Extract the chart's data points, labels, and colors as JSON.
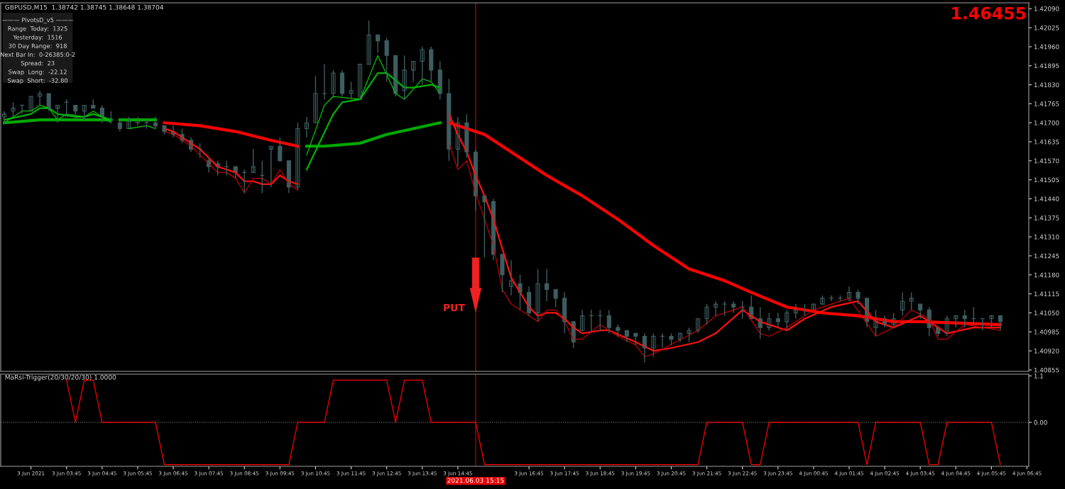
{
  "chart_data": [
    {
      "type": "candlestick",
      "title": "GBPUSD,M15  1.38742 1.38745 1.38648 1.38704",
      "color": "#3e5e60",
      "x": [
        "2021-06-03T02:00",
        "2021-06-03T02:15",
        "2021-06-03T02:30",
        "2021-06-03T02:45",
        "2021-06-03T03:00",
        "2021-06-03T03:15",
        "2021-06-03T03:30",
        "2021-06-03T03:45",
        "2021-06-03T04:00",
        "2021-06-03T04:15",
        "2021-06-03T04:30",
        "2021-06-03T04:45",
        "2021-06-03T05:00",
        "2021-06-03T05:15",
        "2021-06-03T05:30",
        "2021-06-03T05:45",
        "2021-06-03T06:00",
        "2021-06-03T06:15",
        "2021-06-03T06:30",
        "2021-06-03T06:45",
        "2021-06-03T07:00",
        "2021-06-03T07:15",
        "2021-06-03T07:30",
        "2021-06-03T07:45",
        "2021-06-03T08:00",
        "2021-06-03T08:15",
        "2021-06-03T08:30",
        "2021-06-03T08:45",
        "2021-06-03T09:00",
        "2021-06-03T09:15",
        "2021-06-03T09:30",
        "2021-06-03T09:45",
        "2021-06-03T10:00",
        "2021-06-03T10:15",
        "2021-06-03T10:30",
        "2021-06-03T10:45",
        "2021-06-03T11:00",
        "2021-06-03T11:15",
        "2021-06-03T11:30",
        "2021-06-03T11:45",
        "2021-06-03T12:00",
        "2021-06-03T12:15",
        "2021-06-03T12:30",
        "2021-06-03T12:45",
        "2021-06-03T13:00",
        "2021-06-03T13:15",
        "2021-06-03T13:30",
        "2021-06-03T13:45",
        "2021-06-03T14:00",
        "2021-06-03T14:15",
        "2021-06-03T14:30",
        "2021-06-03T14:45",
        "2021-06-03T15:00",
        "2021-06-03T15:15",
        "2021-06-03T15:30",
        "2021-06-03T15:45",
        "2021-06-03T16:00",
        "2021-06-03T16:15",
        "2021-06-03T16:30",
        "2021-06-03T16:45",
        "2021-06-03T17:00",
        "2021-06-03T17:15",
        "2021-06-03T17:30",
        "2021-06-03T17:45",
        "2021-06-03T18:00",
        "2021-06-03T18:15",
        "2021-06-03T18:30",
        "2021-06-03T18:45",
        "2021-06-03T19:00",
        "2021-06-03T19:15",
        "2021-06-03T19:30",
        "2021-06-03T19:45",
        "2021-06-03T20:00",
        "2021-06-03T20:15",
        "2021-06-03T20:30",
        "2021-06-03T20:45",
        "2021-06-03T21:00",
        "2021-06-03T21:15",
        "2021-06-03T21:30",
        "2021-06-03T21:45",
        "2021-06-03T22:00",
        "2021-06-03T22:15",
        "2021-06-03T22:30",
        "2021-06-03T22:45",
        "2021-06-03T23:00",
        "2021-06-03T23:15",
        "2021-06-03T23:30",
        "2021-06-03T23:45",
        "2021-06-04T00:00",
        "2021-06-04T00:15",
        "2021-06-04T00:30",
        "2021-06-04T00:45",
        "2021-06-04T01:00",
        "2021-06-04T01:15",
        "2021-06-04T01:30",
        "2021-06-04T01:45",
        "2021-06-04T02:00",
        "2021-06-04T02:15",
        "2021-06-04T02:30",
        "2021-06-04T02:45",
        "2021-06-04T03:00",
        "2021-06-04T03:15",
        "2021-06-04T03:30",
        "2021-06-04T03:45",
        "2021-06-04T04:00",
        "2021-06-04T04:15",
        "2021-06-04T04:30",
        "2021-06-04T04:45",
        "2021-06-04T05:00",
        "2021-06-04T05:15",
        "2021-06-04T05:30",
        "2021-06-04T05:45",
        "2021-06-04T06:00"
      ],
      "ohlc": [
        [
          1.4172,
          1.4174,
          1.417,
          1.4173
        ],
        [
          1.4174,
          1.4177,
          1.4172,
          1.4175
        ],
        [
          1.4176,
          1.4176,
          1.4173,
          1.4176
        ],
        [
          1.4174,
          1.4179,
          1.4174,
          1.4179
        ],
        [
          1.4179,
          1.4181,
          1.4176,
          1.418
        ],
        [
          1.418,
          1.418,
          1.4174,
          1.4175
        ],
        [
          1.4175,
          1.4176,
          1.417,
          1.4176
        ],
        [
          1.4177,
          1.4178,
          1.4172,
          1.4177
        ],
        [
          1.4176,
          1.4176,
          1.4171,
          1.4174
        ],
        [
          1.4174,
          1.4176,
          1.4171,
          1.4176
        ],
        [
          1.4176,
          1.4178,
          1.4175,
          1.4175
        ],
        [
          1.4175,
          1.4176,
          1.417,
          1.4172
        ],
        [
          1.4171,
          1.4174,
          1.417,
          1.4171
        ],
        [
          1.417,
          1.4171,
          1.4167,
          1.4168
        ],
        [
          1.4168,
          1.4172,
          1.4168,
          1.4171
        ],
        [
          1.417,
          1.4172,
          1.4169,
          1.4171
        ],
        [
          1.417,
          1.4171,
          1.4168,
          1.417
        ],
        [
          1.417,
          1.4172,
          1.4168,
          1.4169
        ],
        [
          1.4169,
          1.4169,
          1.4166,
          1.4167
        ],
        [
          1.4167,
          1.4169,
          1.4165,
          1.4166
        ],
        [
          1.4166,
          1.4168,
          1.4163,
          1.4164
        ],
        [
          1.4164,
          1.4165,
          1.416,
          1.4161
        ],
        [
          1.4161,
          1.4163,
          1.4158,
          1.4161
        ],
        [
          1.4157,
          1.4158,
          1.4153,
          1.4155
        ],
        [
          1.4156,
          1.4157,
          1.4152,
          1.4155
        ],
        [
          1.4155,
          1.4157,
          1.4152,
          1.4155
        ],
        [
          1.4155,
          1.4155,
          1.4151,
          1.4153
        ],
        [
          1.4153,
          1.4154,
          1.4146,
          1.4153
        ],
        [
          1.4153,
          1.4161,
          1.4153,
          1.4155
        ],
        [
          1.4152,
          1.4157,
          1.4146,
          1.4152
        ],
        [
          1.4161,
          1.4162,
          1.4148,
          1.4162
        ],
        [
          1.4162,
          1.4165,
          1.4157,
          1.4157
        ],
        [
          1.4157,
          1.4157,
          1.4146,
          1.4148
        ],
        [
          1.4148,
          1.417,
          1.4147,
          1.4168
        ],
        [
          1.4168,
          1.4172,
          1.4165,
          1.417
        ],
        [
          1.417,
          1.4186,
          1.417,
          1.418
        ],
        [
          1.418,
          1.419,
          1.4178,
          1.418
        ],
        [
          1.418,
          1.4188,
          1.4179,
          1.4187
        ],
        [
          1.4187,
          1.4188,
          1.4179,
          1.418
        ],
        [
          1.418,
          1.4184,
          1.4178,
          1.4181
        ],
        [
          1.4178,
          1.419,
          1.4178,
          1.419
        ],
        [
          1.419,
          1.4205,
          1.419,
          1.42
        ],
        [
          1.42,
          1.42,
          1.4194,
          1.4198
        ],
        [
          1.4198,
          1.4199,
          1.4184,
          1.4193
        ],
        [
          1.4193,
          1.4193,
          1.4179,
          1.418
        ],
        [
          1.4181,
          1.4193,
          1.4178,
          1.4188
        ],
        [
          1.4188,
          1.4191,
          1.4184,
          1.4191
        ],
        [
          1.4191,
          1.4196,
          1.4183,
          1.4195
        ],
        [
          1.4195,
          1.4196,
          1.4184,
          1.4188
        ],
        [
          1.4188,
          1.4191,
          1.4178,
          1.418
        ],
        [
          1.418,
          1.4185,
          1.4157,
          1.4161
        ],
        [
          1.4161,
          1.4172,
          1.4155,
          1.417
        ],
        [
          1.417,
          1.4173,
          1.4158,
          1.416
        ],
        [
          1.416,
          1.4161,
          1.414,
          1.4145
        ],
        [
          1.4145,
          1.4145,
          1.4124,
          1.4143
        ],
        [
          1.4143,
          1.4144,
          1.4123,
          1.4125
        ],
        [
          1.4125,
          1.4125,
          1.4112,
          1.4118
        ],
        [
          1.4114,
          1.4123,
          1.4111,
          1.4116
        ],
        [
          1.4115,
          1.4118,
          1.4106,
          1.4112
        ],
        [
          1.4112,
          1.4114,
          1.4104,
          1.4105
        ],
        [
          1.4105,
          1.412,
          1.4102,
          1.4115
        ],
        [
          1.4115,
          1.412,
          1.4109,
          1.4113
        ],
        [
          1.4113,
          1.4113,
          1.4107,
          1.411
        ],
        [
          1.411,
          1.4112,
          1.4098,
          1.4102
        ],
        [
          1.4102,
          1.4102,
          1.4093,
          1.4095
        ],
        [
          1.4099,
          1.4106,
          1.4099,
          1.4104
        ],
        [
          1.4104,
          1.4106,
          1.4098,
          1.4104
        ],
        [
          1.4104,
          1.4106,
          1.4099,
          1.4104
        ],
        [
          1.4104,
          1.4106,
          1.4098,
          1.41
        ],
        [
          1.41,
          1.4101,
          1.4097,
          1.4099
        ],
        [
          1.4099,
          1.4099,
          1.4095,
          1.4097
        ],
        [
          1.4098,
          1.4098,
          1.4094,
          1.4097
        ],
        [
          1.4097,
          1.4098,
          1.4088,
          1.4093
        ],
        [
          1.4093,
          1.4098,
          1.409,
          1.4097
        ],
        [
          1.4097,
          1.4098,
          1.4093,
          1.4097
        ],
        [
          1.4097,
          1.4098,
          1.4094,
          1.4096
        ],
        [
          1.4096,
          1.4098,
          1.4095,
          1.4098
        ],
        [
          1.4098,
          1.41,
          1.4095,
          1.4099
        ],
        [
          1.4099,
          1.4103,
          1.4098,
          1.4103
        ],
        [
          1.4103,
          1.4108,
          1.4101,
          1.4107
        ],
        [
          1.4107,
          1.4109,
          1.4104,
          1.4108
        ],
        [
          1.4108,
          1.4109,
          1.4104,
          1.4108
        ],
        [
          1.4108,
          1.4109,
          1.4105,
          1.4107
        ],
        [
          1.4107,
          1.4109,
          1.4103,
          1.4107
        ],
        [
          1.4107,
          1.4111,
          1.4103,
          1.4103
        ],
        [
          1.4103,
          1.4107,
          1.4096,
          1.41
        ],
        [
          1.41,
          1.4105,
          1.4099,
          1.4103
        ],
        [
          1.4103,
          1.4105,
          1.41,
          1.4102
        ],
        [
          1.4102,
          1.4106,
          1.4099,
          1.4105
        ],
        [
          1.4105,
          1.4108,
          1.4103,
          1.4106
        ],
        [
          1.4106,
          1.4108,
          1.4104,
          1.4106
        ],
        [
          1.4106,
          1.4108,
          1.4106,
          1.4108
        ],
        [
          1.4108,
          1.4111,
          1.4108,
          1.411
        ],
        [
          1.411,
          1.4111,
          1.4109,
          1.411
        ],
        [
          1.411,
          1.4111,
          1.4109,
          1.411
        ],
        [
          1.411,
          1.4114,
          1.4109,
          1.4112
        ],
        [
          1.4112,
          1.4113,
          1.4108,
          1.411
        ],
        [
          1.411,
          1.411,
          1.41,
          1.4102
        ],
        [
          1.41,
          1.4106,
          1.4097,
          1.4103
        ],
        [
          1.4103,
          1.4104,
          1.41,
          1.4101
        ],
        [
          1.4101,
          1.4105,
          1.41,
          1.4103
        ],
        [
          1.4106,
          1.4112,
          1.4104,
          1.4109
        ],
        [
          1.4109,
          1.4112,
          1.4106,
          1.411
        ],
        [
          1.4108,
          1.4108,
          1.4103,
          1.4106
        ],
        [
          1.4106,
          1.4107,
          1.4097,
          1.41
        ],
        [
          1.41,
          1.41,
          1.4097,
          1.4098
        ],
        [
          1.4098,
          1.4104,
          1.4097,
          1.4103
        ],
        [
          1.4103,
          1.4104,
          1.41,
          1.4104
        ],
        [
          1.4104,
          1.4106,
          1.41,
          1.4103
        ],
        [
          1.4103,
          1.4107,
          1.4101,
          1.4103
        ],
        [
          1.4103,
          1.4103,
          1.4099,
          1.4103
        ],
        [
          1.4103,
          1.4104,
          1.41,
          1.4104
        ],
        [
          1.4104,
          1.4104,
          1.4099,
          1.4102
        ]
      ],
      "series": [
        {
          "type": "line",
          "color": "#00a800",
          "x": [
            "2021-06-03T02:00",
            "2021-06-03T03:00",
            "2021-06-03T03:45",
            "2021-06-03T05:00"
          ],
          "values": [
            1.417,
            1.4171,
            1.4171,
            1.4171
          ]
        },
        {
          "type": "line",
          "color": "#00a800",
          "x": [
            "2021-06-03T05:15",
            "2021-06-03T06:15"
          ],
          "values": [
            1.4171,
            1.4171
          ]
        },
        {
          "type": "line",
          "color": "#00a800",
          "x": [
            "2021-06-03T10:30",
            "2021-06-03T11:00",
            "2021-06-03T12:00",
            "2021-06-03T12:45",
            "2021-06-03T13:30",
            "2021-06-03T14:15"
          ],
          "values": [
            1.4162,
            1.4162,
            1.4163,
            1.4166,
            1.4168,
            1.417
          ]
        },
        {
          "type": "line",
          "color": "#ff0000",
          "x": [
            "2021-06-03T06:30",
            "2021-06-03T07:30",
            "2021-06-03T08:30",
            "2021-06-03T09:30",
            "2021-06-03T10:15"
          ],
          "values": [
            1.417,
            1.4169,
            1.4167,
            1.4164,
            1.4162
          ]
        },
        {
          "type": "line",
          "color": "#ff0000",
          "x": [
            "2021-06-03T14:30",
            "2021-06-03T15:30",
            "2021-06-03T16:00",
            "2021-06-03T17:15",
            "2021-06-03T18:15",
            "2021-06-03T19:15",
            "2021-06-03T20:15",
            "2021-06-03T21:15",
            "2021-06-03T22:15",
            "2021-06-03T23:00",
            "2021-06-04T00:00",
            "2021-06-04T01:00",
            "2021-06-04T02:00",
            "2021-06-04T03:00",
            "2021-06-04T03:45",
            "2021-06-04T06:00"
          ],
          "values": [
            1.417,
            1.4166,
            1.4162,
            1.4152,
            1.4145,
            1.4137,
            1.4128,
            1.412,
            1.4116,
            1.4112,
            1.4107,
            1.4105,
            1.4104,
            1.4102,
            1.4102,
            1.4101
          ]
        },
        {
          "type": "line",
          "color": "#00b400",
          "x": [
            "2021-06-03T02:00",
            "2021-06-03T02:45",
            "2021-06-03T03:00",
            "2021-06-03T03:15",
            "2021-06-03T03:30",
            "2021-06-03T04:00",
            "2021-06-03T04:15",
            "2021-06-03T04:30",
            "2021-06-03T05:00"
          ],
          "values": [
            1.4171,
            1.4173,
            1.4175,
            1.4175,
            1.4173,
            1.4172,
            1.4172,
            1.4173,
            1.4171
          ]
        },
        {
          "type": "line",
          "color": "#00b400",
          "x": [
            "2021-06-03T10:30",
            "2021-06-03T11:15",
            "2021-06-03T11:30",
            "2021-06-03T12:00",
            "2021-06-03T12:30",
            "2021-06-03T12:45",
            "2021-06-03T13:15",
            "2021-06-03T13:30",
            "2021-06-03T14:00",
            "2021-06-03T14:15"
          ],
          "values": [
            1.4154,
            1.4173,
            1.4177,
            1.4178,
            1.4187,
            1.4187,
            1.4182,
            1.4182,
            1.4183,
            1.4182
          ]
        },
        {
          "type": "line",
          "color": "#ff1010",
          "x": [
            "2021-06-03T06:30",
            "2021-06-03T06:45",
            "2021-06-03T07:00",
            "2021-06-03T07:15",
            "2021-06-03T07:30",
            "2021-06-03T07:45",
            "2021-06-03T08:00",
            "2021-06-03T08:15",
            "2021-06-03T08:30",
            "2021-06-03T08:45",
            "2021-06-03T09:00",
            "2021-06-03T09:15",
            "2021-06-03T09:30",
            "2021-06-03T09:45",
            "2021-06-03T10:00",
            "2021-06-03T10:15"
          ],
          "values": [
            1.4168,
            1.4167,
            1.4165,
            1.4163,
            1.4161,
            1.4158,
            1.4155,
            1.4154,
            1.4153,
            1.415,
            1.415,
            1.4149,
            1.4149,
            1.4152,
            1.415,
            1.4149
          ]
        },
        {
          "type": "line",
          "color": "#ff1010",
          "x": [
            "2021-06-03T14:30",
            "2021-06-03T14:45",
            "2021-06-03T15:00",
            "2021-06-03T15:15",
            "2021-06-03T15:30",
            "2021-06-03T15:45",
            "2021-06-03T16:00",
            "2021-06-03T16:15",
            "2021-06-03T16:30",
            "2021-06-03T16:45",
            "2021-06-03T17:00",
            "2021-06-03T17:15",
            "2021-06-03T17:30",
            "2021-06-03T17:45",
            "2021-06-03T18:00",
            "2021-06-03T18:15",
            "2021-06-03T18:45",
            "2021-06-03T19:00",
            "2021-06-03T19:45",
            "2021-06-03T20:15",
            "2021-06-03T20:45",
            "2021-06-03T21:30",
            "2021-06-03T22:00",
            "2021-06-03T22:45",
            "2021-06-03T23:15",
            "2021-06-04T00:00",
            "2021-06-04T00:30",
            "2021-06-04T01:15",
            "2021-06-04T02:00",
            "2021-06-04T02:30",
            "2021-06-04T03:00",
            "2021-06-04T03:45",
            "2021-06-04T04:15",
            "2021-06-04T04:30",
            "2021-06-04T05:15",
            "2021-06-04T06:00"
          ],
          "values": [
            1.4173,
            1.4166,
            1.416,
            1.4152,
            1.4145,
            1.4137,
            1.4127,
            1.4117,
            1.4112,
            1.4107,
            1.4104,
            1.4105,
            1.4105,
            1.4103,
            1.41,
            1.4098,
            1.4099,
            1.4099,
            1.4095,
            1.4092,
            1.4093,
            1.4095,
            1.4098,
            1.4106,
            1.4102,
            1.4099,
            1.4103,
            1.4107,
            1.4109,
            1.4102,
            1.41,
            1.4104,
            1.41,
            1.4098,
            1.41,
            1.41
          ]
        },
        {
          "type": "line",
          "color": "#00c800",
          "x": [
            "2021-06-03T02:00",
            "2021-06-03T02:30",
            "2021-06-03T02:45",
            "2021-06-03T03:00",
            "2021-06-03T03:15",
            "2021-06-03T03:30",
            "2021-06-03T03:45",
            "2021-06-03T04:15",
            "2021-06-03T04:30",
            "2021-06-03T05:00"
          ],
          "values": [
            1.417,
            1.4174,
            1.4174,
            1.4176,
            1.4175,
            1.4171,
            1.4173,
            1.4172,
            1.4174,
            1.417
          ]
        },
        {
          "type": "line",
          "color": "#00c800",
          "x": [
            "2021-06-03T05:30",
            "2021-06-03T06:00",
            "2021-06-03T06:15"
          ],
          "values": [
            1.4168,
            1.4169,
            1.4168
          ]
        },
        {
          "type": "line",
          "color": "#00c800",
          "x": [
            "2021-06-03T10:30",
            "2021-06-03T11:00",
            "2021-06-03T11:15",
            "2021-06-03T12:00",
            "2021-06-03T12:30",
            "2021-06-03T13:00",
            "2021-06-03T13:15",
            "2021-06-03T13:45",
            "2021-06-03T14:00",
            "2021-06-03T14:15"
          ],
          "values": [
            1.4159,
            1.4176,
            1.4179,
            1.4178,
            1.4193,
            1.418,
            1.4178,
            1.4185,
            1.4184,
            1.418
          ]
        },
        {
          "type": "line",
          "color": "#c00000",
          "x": [
            "2021-06-03T06:30",
            "2021-06-03T06:45",
            "2021-06-03T07:00",
            "2021-06-03T07:15",
            "2021-06-03T07:30",
            "2021-06-03T07:45",
            "2021-06-03T08:00",
            "2021-06-03T08:15",
            "2021-06-03T08:30",
            "2021-06-03T08:45",
            "2021-06-03T09:00",
            "2021-06-03T09:15",
            "2021-06-03T09:30",
            "2021-06-03T09:45",
            "2021-06-03T10:00",
            "2021-06-03T10:15"
          ],
          "values": [
            1.4167,
            1.4166,
            1.4164,
            1.4162,
            1.4159,
            1.4156,
            1.4153,
            1.4153,
            1.4151,
            1.4146,
            1.4151,
            1.4151,
            1.4149,
            1.4154,
            1.4149,
            1.4147
          ]
        },
        {
          "type": "line",
          "color": "#c00000",
          "x": [
            "2021-06-03T14:30",
            "2021-06-03T14:45",
            "2021-06-03T15:00",
            "2021-06-03T15:15",
            "2021-06-03T15:30",
            "2021-06-03T15:45",
            "2021-06-03T16:00",
            "2021-06-03T16:15",
            "2021-06-03T16:30",
            "2021-06-03T16:45",
            "2021-06-03T17:00",
            "2021-06-03T17:15",
            "2021-06-03T17:30",
            "2021-06-03T17:45",
            "2021-06-03T18:00",
            "2021-06-03T18:15",
            "2021-06-03T18:45",
            "2021-06-03T19:15",
            "2021-06-03T19:45",
            "2021-06-03T20:00",
            "2021-06-03T20:15",
            "2021-06-03T21:30",
            "2021-06-03T22:00",
            "2021-06-03T22:45",
            "2021-06-03T23:15",
            "2021-06-03T23:30",
            "2021-06-04T00:00",
            "2021-06-04T00:45",
            "2021-06-04T01:45",
            "2021-06-04T02:30",
            "2021-06-04T03:00",
            "2021-06-04T03:30",
            "2021-06-04T04:00",
            "2021-06-04T04:15",
            "2021-06-04T04:30",
            "2021-06-04T05:00",
            "2021-06-04T06:00"
          ],
          "values": [
            1.4163,
            1.4154,
            1.4157,
            1.4146,
            1.4137,
            1.4128,
            1.4113,
            1.4108,
            1.4106,
            1.4104,
            1.4102,
            1.4106,
            1.4106,
            1.4102,
            1.4096,
            1.4096,
            1.4101,
            1.4097,
            1.4094,
            1.409,
            1.4091,
            1.4099,
            1.4104,
            1.4107,
            1.4098,
            1.4097,
            1.41,
            1.4106,
            1.411,
            1.4097,
            1.41,
            1.4106,
            1.4103,
            1.4096,
            1.4096,
            1.4101,
            1.4099
          ]
        }
      ],
      "xlim": [
        "2021-06-03T01:54",
        "2021-06-04T06:48"
      ],
      "ylim": [
        1.4085,
        1.4211
      ],
      "yticks": [
        {
          "value": 1.4209,
          "label": "1.42090"
        },
        {
          "value": 1.42025,
          "label": "1.42025"
        },
        {
          "value": 1.4196,
          "label": "1.41960"
        },
        {
          "value": 1.41895,
          "label": "1.41895"
        },
        {
          "value": 1.4183,
          "label": "1.41830"
        },
        {
          "value": 1.41765,
          "label": "1.41765"
        },
        {
          "value": 1.417,
          "label": "1.41700"
        },
        {
          "value": 1.41635,
          "label": "1.41635"
        },
        {
          "value": 1.4157,
          "label": "1.41570"
        },
        {
          "value": 1.41505,
          "label": "1.41505"
        },
        {
          "value": 1.4144,
          "label": "1.41440"
        },
        {
          "value": 1.41375,
          "label": "1.41375"
        },
        {
          "value": 1.4131,
          "label": "1.41310"
        },
        {
          "value": 1.41245,
          "label": "1.41245"
        },
        {
          "value": 1.4118,
          "label": "1.41180"
        },
        {
          "value": 1.41115,
          "label": "1.41115"
        },
        {
          "value": 1.4105,
          "label": "1.41050"
        },
        {
          "value": 1.40985,
          "label": "1.40985"
        },
        {
          "value": 1.4092,
          "label": "1.40920"
        },
        {
          "value": 1.40855,
          "label": "1.40855"
        }
      ],
      "tick_labels": "y",
      "ref_lines": [
        {
          "axis": "x",
          "value": "2021-06-03T15:15",
          "color": "#b00000"
        }
      ],
      "annotations": [
        "——— PivotsD_v5 ———",
        "Range  Today:  1325",
        "Yesterday:  1516",
        "30 Day Range:  918",
        "Next Bar In:  0-26385:0-2",
        "Spread:  23",
        "Swap  Long:  -22.12",
        "Swap  Short:  -32.80",
        "1.46455",
        {
          "text": "PUT",
          "x": "2021-06-03T15:15",
          "y": 1.4105
        }
      ]
    },
    {
      "type": "line",
      "title": "MaRsi-Trigger(20/30/20/30) 1.0000",
      "series": [
        {
          "color": "#ff0000",
          "x": [
            "2021-06-03T03:45",
            "2021-06-03T04:00",
            "2021-06-03T04:15",
            "2021-06-03T04:30",
            "2021-06-03T04:45",
            "2021-06-03T05:00",
            "2021-06-03T05:15",
            "2021-06-03T05:30",
            "2021-06-03T05:45",
            "2021-06-03T06:00",
            "2021-06-03T06:15",
            "2021-06-03T06:30",
            "2021-06-03T06:45",
            "2021-06-03T07:00",
            "2021-06-03T07:15",
            "2021-06-03T07:30",
            "2021-06-03T07:45",
            "2021-06-03T08:00",
            "2021-06-03T08:15",
            "2021-06-03T08:30",
            "2021-06-03T08:45",
            "2021-06-03T09:00",
            "2021-06-03T09:15",
            "2021-06-03T09:30",
            "2021-06-03T09:45",
            "2021-06-03T10:00",
            "2021-06-03T10:15",
            "2021-06-03T10:30",
            "2021-06-03T10:45",
            "2021-06-03T11:00",
            "2021-06-03T11:15",
            "2021-06-03T11:30",
            "2021-06-03T11:45",
            "2021-06-03T12:00",
            "2021-06-03T12:15",
            "2021-06-03T12:30",
            "2021-06-03T12:45",
            "2021-06-03T13:00",
            "2021-06-03T13:15",
            "2021-06-03T13:30",
            "2021-06-03T13:45",
            "2021-06-03T14:00",
            "2021-06-03T14:15",
            "2021-06-03T14:30",
            "2021-06-03T14:45",
            "2021-06-03T15:00",
            "2021-06-03T15:15",
            "2021-06-03T15:30",
            "2021-06-03T15:45",
            "2021-06-03T16:00",
            "2021-06-03T16:15",
            "2021-06-03T16:30",
            "2021-06-03T16:45",
            "2021-06-03T17:00",
            "2021-06-03T17:15",
            "2021-06-03T17:30",
            "2021-06-03T17:45",
            "2021-06-03T18:00",
            "2021-06-03T18:15",
            "2021-06-03T18:30",
            "2021-06-03T18:45",
            "2021-06-03T19:00",
            "2021-06-03T19:15",
            "2021-06-03T19:30",
            "2021-06-03T19:45",
            "2021-06-03T20:00",
            "2021-06-03T20:15",
            "2021-06-03T20:30",
            "2021-06-03T20:45",
            "2021-06-03T21:00",
            "2021-06-03T21:15",
            "2021-06-03T21:30",
            "2021-06-03T21:45",
            "2021-06-03T22:00",
            "2021-06-03T22:15",
            "2021-06-03T22:30",
            "2021-06-03T22:45",
            "2021-06-03T23:00",
            "2021-06-03T23:15",
            "2021-06-03T23:30",
            "2021-06-03T23:45",
            "2021-06-04T00:00",
            "2021-06-04T00:15",
            "2021-06-04T00:30",
            "2021-06-04T00:45",
            "2021-06-04T01:00",
            "2021-06-04T01:15",
            "2021-06-04T01:30",
            "2021-06-04T01:45",
            "2021-06-04T02:00",
            "2021-06-04T02:15",
            "2021-06-04T02:30",
            "2021-06-04T02:45",
            "2021-06-04T03:00",
            "2021-06-04T03:15",
            "2021-06-04T03:30",
            "2021-06-04T03:45",
            "2021-06-04T04:00",
            "2021-06-04T04:15",
            "2021-06-04T04:30",
            "2021-06-04T04:45",
            "2021-06-04T05:00",
            "2021-06-04T05:15",
            "2021-06-04T05:30",
            "2021-06-04T05:45",
            "2021-06-04T06:00"
          ],
          "values": [
            1,
            0,
            1,
            1,
            0,
            0,
            0,
            0,
            0,
            0,
            0,
            -1,
            -1,
            -1,
            -1,
            -1,
            -1,
            -1,
            -1,
            -1,
            -1,
            -1,
            -1,
            -1,
            -1,
            -1,
            0,
            0,
            0,
            0,
            1,
            1,
            1,
            1,
            1,
            1,
            1,
            0,
            1,
            1,
            1,
            0,
            0,
            0,
            0,
            0,
            0,
            -1,
            -1,
            -1,
            -1,
            -1,
            -1,
            -1,
            -1,
            -1,
            -1,
            -1,
            -1,
            -1,
            -1,
            -1,
            -1,
            -1,
            -1,
            -1,
            -1,
            -1,
            -1,
            -1,
            -1,
            -1,
            0,
            0,
            0,
            0,
            0,
            -1,
            -1,
            0,
            0,
            0,
            0,
            0,
            0,
            0,
            0,
            0,
            0,
            0,
            -1,
            0,
            0,
            0,
            0,
            0,
            0,
            -1,
            -1,
            0,
            0,
            0,
            0,
            0,
            0,
            -1
          ]
        }
      ],
      "xlim": [
        "2021-06-03T01:54",
        "2021-06-04T06:48"
      ],
      "ylim": [
        -1.04,
        1.14
      ],
      "yticks": [
        {
          "value": 1.1,
          "label": "1.1"
        },
        {
          "value": 0,
          "label": "0.00"
        }
      ],
      "xticks": [
        {
          "value": "2021-06-03T02:45",
          "label": "3 Jun 2021"
        },
        {
          "value": "2021-06-03T03:45",
          "label": "3 Jun 03:45"
        },
        {
          "value": "2021-06-03T04:45",
          "label": "3 Jun 04:45"
        },
        {
          "value": "2021-06-03T05:45",
          "label": "3 Jun 05:45"
        },
        {
          "value": "2021-06-03T06:45",
          "label": "3 Jun 06:45"
        },
        {
          "value": "2021-06-03T07:45",
          "label": "3 Jun 07:45"
        },
        {
          "value": "2021-06-03T08:45",
          "label": "3 Jun 08:45"
        },
        {
          "value": "2021-06-03T09:45",
          "label": "3 Jun 09:45"
        },
        {
          "value": "2021-06-03T10:45",
          "label": "3 Jun 10:45"
        },
        {
          "value": "2021-06-03T11:45",
          "label": "3 Jun 11:45"
        },
        {
          "value": "2021-06-03T12:45",
          "label": "3 Jun 12:45"
        },
        {
          "value": "2021-06-03T13:45",
          "label": "3 Jun 13:45"
        },
        {
          "value": "2021-06-03T14:45",
          "label": "3 Jun 14:45"
        },
        {
          "value": "2021-06-03T16:45",
          "label": "3 Jun 16:45"
        },
        {
          "value": "2021-06-03T17:45",
          "label": "3 Jun 17:45"
        },
        {
          "value": "2021-06-03T18:45",
          "label": "3 Jun 18:45"
        },
        {
          "value": "2021-06-03T19:45",
          "label": "3 Jun 19:45"
        },
        {
          "value": "2021-06-03T20:45",
          "label": "3 Jun 20:45"
        },
        {
          "value": "2021-06-03T21:45",
          "label": "3 Jun 21:45"
        },
        {
          "value": "2021-06-03T22:45",
          "label": "3 Jun 22:45"
        },
        {
          "value": "2021-06-03T23:45",
          "label": "3 Jun 23:45"
        },
        {
          "value": "2021-06-04T00:45",
          "label": "4 Jun 00:45"
        },
        {
          "value": "2021-06-04T01:45",
          "label": "4 Jun 01:45"
        },
        {
          "value": "2021-06-04T02:45",
          "label": "4 Jun 02:45"
        },
        {
          "value": "2021-06-04T03:45",
          "label": "4 Jun 03:45"
        },
        {
          "value": "2021-06-04T04:45",
          "label": "4 Jun 04:45"
        },
        {
          "value": "2021-06-04T05:45",
          "label": "4 Jun 05:45"
        },
        {
          "value": "2021-06-04T06:45",
          "label": "4 Jun 06:45"
        }
      ],
      "ref_lines": [
        {
          "axis": "x",
          "value": "2021-06-03T15:15",
          "label": "2021.06.03 15:15",
          "color": "#b00000"
        },
        {
          "axis": "y",
          "value": 0,
          "color": "#909090",
          "line_style": "dotted"
        }
      ]
    }
  ]
}
